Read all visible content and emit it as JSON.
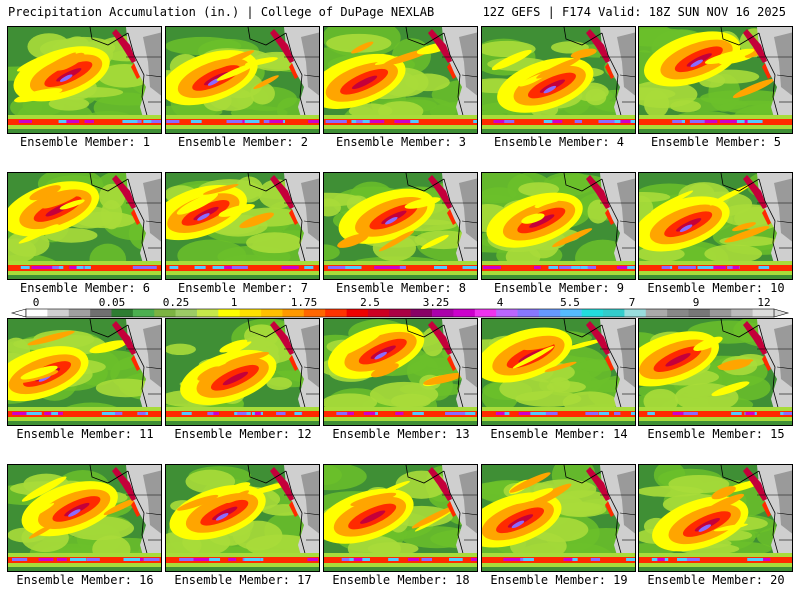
{
  "header": {
    "title": "Precipitation Accumulation (in.) | College of DuPage NEXLAB",
    "run_info": "12Z GEFS | F174 Valid: 18Z SUN NOV 16 2025"
  },
  "members": [
    "Ensemble Member: 1",
    "Ensemble Member: 2",
    "Ensemble Member: 3",
    "Ensemble Member: 4",
    "Ensemble Member: 5",
    "Ensemble Member: 6",
    "Ensemble Member: 7",
    "Ensemble Member: 8",
    "Ensemble Member: 9",
    "Ensemble Member: 10",
    "Ensemble Member: 11",
    "Ensemble Member: 12",
    "Ensemble Member: 13",
    "Ensemble Member: 14",
    "Ensemble Member: 15",
    "Ensemble Member: 16",
    "Ensemble Member: 17",
    "Ensemble Member: 18",
    "Ensemble Member: 19",
    "Ensemble Member: 20"
  ],
  "color_scale": {
    "labels": [
      "0",
      "0.05",
      "0.25",
      "1",
      "1.75",
      "2.5",
      "3.25",
      "4",
      "5.5",
      "7",
      "9",
      "12"
    ],
    "colors": [
      "#ffffff",
      "#d0d0d0",
      "#a0a0a0",
      "#707070",
      "#2e7d32",
      "#4caf50",
      "#7cb342",
      "#9ccc65",
      "#c6e84a",
      "#ffff00",
      "#ffe000",
      "#ffc000",
      "#ff9900",
      "#ff6600",
      "#ff3300",
      "#ee0000",
      "#cc0022",
      "#aa0044",
      "#880066",
      "#aa00aa",
      "#cc00cc",
      "#ee33ee",
      "#bb66ff",
      "#8877ff",
      "#6699ff",
      "#55bbff",
      "#22dddd",
      "#33cccc",
      "#99dddd",
      "#aaaaaa",
      "#888888",
      "#777777",
      "#999999",
      "#bbbbbb",
      "#dddddd"
    ]
  },
  "map_colors": {
    "ocean_dry": "#3f8f35",
    "green": "#6bbf2a",
    "light_green": "#a8dc3a",
    "yellow": "#ffff00",
    "orange": "#ffa500",
    "red": "#ff2a00",
    "dark_red": "#c4003a",
    "magenta": "#cc00cc",
    "violet": "#8a6bff",
    "cyan": "#55c8ff",
    "land_gray": "#9a9a9a",
    "land_light": "#cfcfcf",
    "boundary": "#000000"
  }
}
